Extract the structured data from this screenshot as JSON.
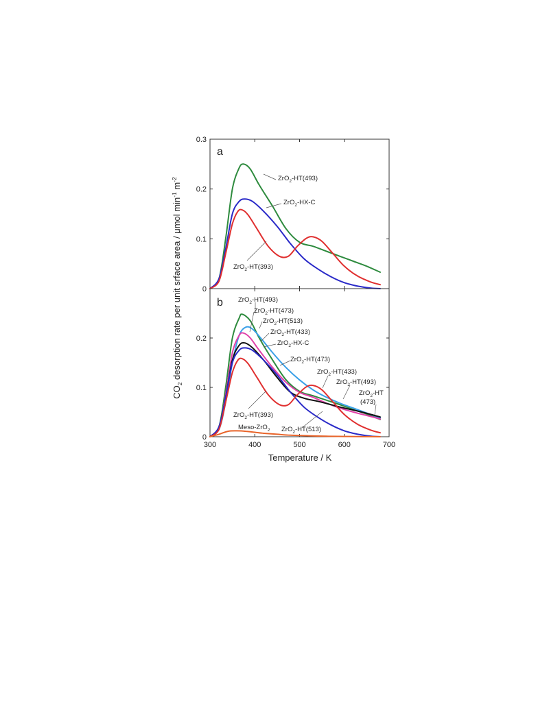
{
  "chart_data": [
    {
      "type": "line",
      "panel": "a",
      "xlim": [
        300,
        700
      ],
      "ylim": [
        0,
        0.3
      ],
      "xticks": [
        300,
        400,
        500,
        600,
        700
      ],
      "yticks": [
        0,
        0.1,
        0.2,
        0.3
      ],
      "ytick_labels": [
        "0",
        "0.1",
        "0.2",
        "0.3"
      ],
      "grid": false,
      "series": [
        {
          "name": "ZrO2-HT(493)",
          "label_main": "ZrO",
          "label_sub": "2",
          "label_rest": "-HT(493)",
          "color": "#2e8b3e",
          "x": [
            300,
            320,
            335,
            350,
            365,
            375,
            390,
            410,
            440,
            470,
            500,
            530,
            560,
            590,
            620,
            650,
            680
          ],
          "y": [
            0.0,
            0.02,
            0.1,
            0.2,
            0.242,
            0.25,
            0.24,
            0.208,
            0.165,
            0.12,
            0.093,
            0.085,
            0.075,
            0.065,
            0.055,
            0.045,
            0.033
          ]
        },
        {
          "name": "ZrO2-HX-C",
          "label_main": "ZrO",
          "label_sub": "2",
          "label_rest": "-HX-C",
          "color": "#2a2ac8",
          "x": [
            300,
            320,
            335,
            350,
            365,
            378,
            395,
            420,
            450,
            480,
            510,
            540,
            570,
            600,
            630,
            660,
            680
          ],
          "y": [
            0.0,
            0.02,
            0.08,
            0.15,
            0.175,
            0.18,
            0.175,
            0.155,
            0.125,
            0.09,
            0.06,
            0.04,
            0.024,
            0.012,
            0.005,
            0.001,
            0.0
          ]
        },
        {
          "name": "ZrO2-HT(393)",
          "label_main": "ZrO",
          "label_sub": "2",
          "label_rest": "-HT(393)",
          "color": "#e03030",
          "x": [
            300,
            320,
            335,
            350,
            362,
            372,
            385,
            405,
            430,
            455,
            475,
            495,
            515,
            530,
            550,
            575,
            600,
            630,
            660,
            680
          ],
          "y": [
            0.0,
            0.015,
            0.07,
            0.13,
            0.155,
            0.158,
            0.148,
            0.12,
            0.085,
            0.065,
            0.065,
            0.085,
            0.101,
            0.104,
            0.095,
            0.07,
            0.045,
            0.025,
            0.013,
            0.008
          ]
        }
      ],
      "annotations": [
        {
          "main": "ZrO",
          "sub": "2",
          "rest": "-HT(493)"
        },
        {
          "main": "ZrO",
          "sub": "2",
          "rest": "-HX-C"
        },
        {
          "main": "ZrO",
          "sub": "2",
          "rest": "-HT(393)"
        }
      ]
    },
    {
      "type": "line",
      "panel": "b",
      "xlim": [
        300,
        700
      ],
      "ylim": [
        0,
        0.3
      ],
      "xticks": [
        300,
        400,
        500,
        600,
        700
      ],
      "xtick_labels": [
        "300",
        "400",
        "500",
        "600",
        "700"
      ],
      "yticks": [
        0,
        0.1,
        0.2
      ],
      "ytick_labels": [
        "0",
        "0.1",
        "0.2"
      ],
      "xlabel": "Temperature / K",
      "grid": false,
      "series": [
        {
          "name": "ZrO2-HT(493)",
          "color": "#2e8b3e",
          "x": [
            300,
            320,
            335,
            350,
            365,
            372,
            390,
            410,
            440,
            470,
            500,
            530,
            560,
            590,
            620,
            650,
            680
          ],
          "y": [
            0.0,
            0.02,
            0.1,
            0.2,
            0.24,
            0.248,
            0.235,
            0.2,
            0.155,
            0.115,
            0.092,
            0.083,
            0.074,
            0.065,
            0.055,
            0.046,
            0.035
          ]
        },
        {
          "name": "ZrO2-HT(513)",
          "color": "#3aa0e8",
          "x": [
            300,
            320,
            335,
            350,
            365,
            380,
            395,
            415,
            440,
            470,
            500,
            530,
            560,
            590,
            620,
            650,
            680
          ],
          "y": [
            0.0,
            0.015,
            0.07,
            0.15,
            0.205,
            0.222,
            0.218,
            0.198,
            0.17,
            0.14,
            0.115,
            0.095,
            0.08,
            0.068,
            0.058,
            0.048,
            0.038
          ]
        },
        {
          "name": "ZrO2-HT(473)",
          "color": "#e040a8",
          "x": [
            300,
            320,
            335,
            350,
            365,
            375,
            390,
            410,
            440,
            470,
            500,
            530,
            560,
            590,
            620,
            650,
            680
          ],
          "y": [
            0.0,
            0.018,
            0.085,
            0.17,
            0.205,
            0.21,
            0.2,
            0.175,
            0.14,
            0.11,
            0.09,
            0.08,
            0.068,
            0.058,
            0.05,
            0.043,
            0.036
          ]
        },
        {
          "name": "ZrO2-HT(433)",
          "color": "#111111",
          "x": [
            300,
            320,
            335,
            350,
            365,
            378,
            395,
            420,
            450,
            480,
            510,
            540,
            570,
            600,
            630,
            660,
            680
          ],
          "y": [
            0.0,
            0.02,
            0.08,
            0.155,
            0.185,
            0.19,
            0.18,
            0.155,
            0.12,
            0.09,
            0.078,
            0.072,
            0.065,
            0.058,
            0.052,
            0.045,
            0.04
          ]
        },
        {
          "name": "ZrO2-HX-C",
          "color": "#2a2ac8",
          "x": [
            300,
            320,
            335,
            350,
            365,
            378,
            395,
            420,
            450,
            480,
            510,
            540,
            570,
            600,
            630,
            660,
            680
          ],
          "y": [
            0.0,
            0.02,
            0.08,
            0.15,
            0.175,
            0.18,
            0.175,
            0.155,
            0.125,
            0.09,
            0.06,
            0.04,
            0.024,
            0.012,
            0.005,
            0.001,
            0.0
          ]
        },
        {
          "name": "ZrO2-HT(393)",
          "color": "#e03030",
          "x": [
            300,
            320,
            335,
            350,
            362,
            372,
            385,
            405,
            430,
            455,
            475,
            495,
            515,
            530,
            550,
            575,
            600,
            630,
            660,
            680
          ],
          "y": [
            0.0,
            0.015,
            0.07,
            0.13,
            0.155,
            0.158,
            0.148,
            0.12,
            0.085,
            0.065,
            0.065,
            0.085,
            0.101,
            0.104,
            0.095,
            0.07,
            0.045,
            0.025,
            0.013,
            0.008
          ]
        },
        {
          "name": "Meso-ZrO2",
          "color": "#e8642a",
          "x": [
            300,
            320,
            340,
            360,
            380,
            400,
            420,
            450,
            480,
            520,
            560,
            600,
            640,
            680
          ],
          "y": [
            0.0,
            0.005,
            0.011,
            0.012,
            0.011,
            0.009,
            0.007,
            0.005,
            0.003,
            0.002,
            0.001,
            0.0005,
            0.0002,
            0.0
          ]
        }
      ],
      "annotations": [
        {
          "main": "ZrO",
          "sub": "2",
          "rest": "-HT(493)"
        },
        {
          "main": "ZrO",
          "sub": "2",
          "rest": "-HT(473)"
        },
        {
          "main": "ZrO",
          "sub": "2",
          "rest": "-HT(513)"
        },
        {
          "main": "ZrO",
          "sub": "2",
          "rest": "-HT(433)"
        },
        {
          "main": "ZrO",
          "sub": "2",
          "rest": "-HX-C"
        },
        {
          "main": "ZrO",
          "sub": "2",
          "rest": "-HT(473)"
        },
        {
          "main": "ZrO",
          "sub": "2",
          "rest": "-HT(433)"
        },
        {
          "main": "ZrO",
          "sub": "2",
          "rest": "-HT(493)"
        },
        {
          "main": "ZrO",
          "sub": "2",
          "rest": "-HT"
        },
        {
          "main": "(473)",
          "sub": "",
          "rest": ""
        },
        {
          "main": "ZrO",
          "sub": "2",
          "rest": "-HT(393)"
        },
        {
          "main": "Meso-ZrO",
          "sub": "2",
          "rest": ""
        },
        {
          "main": "ZrO",
          "sub": "2",
          "rest": "-HT(513)"
        }
      ]
    }
  ],
  "ylabel": {
    "main": "CO",
    "sub": "2",
    "rest": " desorption rate per unit srface area / μmol min",
    "sup1": "-1",
    "mid": " m",
    "sup2": "-2"
  }
}
